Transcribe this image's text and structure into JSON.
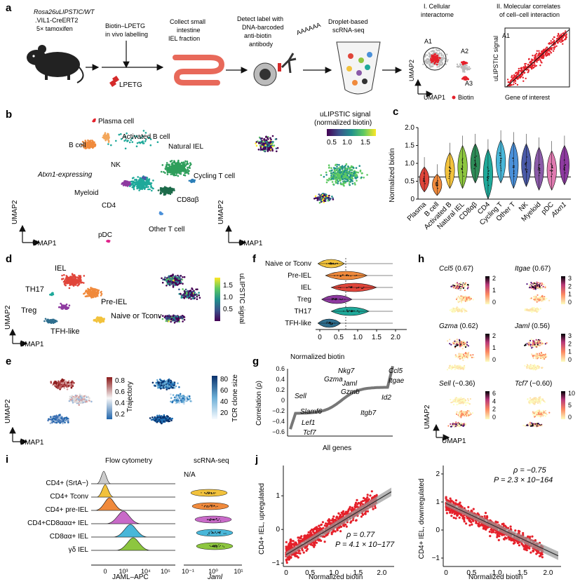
{
  "panels": {
    "a": "a",
    "b": "b",
    "c": "c",
    "d": "d",
    "e": "e",
    "f": "f",
    "g": "g",
    "h": "h",
    "i": "i",
    "j": "j"
  },
  "panel_a": {
    "mouse_line1": "Rosa26uLIPSTIC/WT",
    "mouse_line2": ".VIL1-CreERT2",
    "mouse_line3": "5× tamoxifen",
    "step1": [
      "Biotin–LPETG",
      "in vivo labelling"
    ],
    "lpetg": "LPETG",
    "step2": [
      "Collect small",
      "intestine",
      "IEL fraction"
    ],
    "step3": [
      "Detect label with",
      "DNA-barcoded",
      "anti-biotin",
      "antibody"
    ],
    "polyA": "AAAAAA",
    "step4": [
      "Droplet-based",
      "scRNA-seq"
    ],
    "section1": [
      "I. Cellular",
      "interactome"
    ],
    "section2": [
      "II. Molecular correlates",
      "of cell–cell interaction"
    ],
    "umap1": "UMAP1",
    "umap2": "UMAP2",
    "a1": "A1",
    "a2": "A2",
    "a3": "A3",
    "biotin": "Biotin",
    "ulipstic_signal": "uLIPSTIC signal",
    "gene_of_interest": "Gene of interest"
  },
  "panel_b": {
    "clusters": [
      "Plasma cell",
      "B cell",
      "Activated B cell",
      "Natural IEL",
      "NK",
      "Atxn1-expressing",
      "Cycling T cell",
      "Myeloid",
      "CD8αβ",
      "CD4",
      "Other T cell",
      "pDC"
    ],
    "legend_title": [
      "uLIPSTIC signal",
      "(normalized biotin)"
    ],
    "legend_ticks": [
      "0.5",
      "1.0",
      "1.5"
    ],
    "umap1": "UMAP1",
    "umap2": "UMAP2"
  },
  "panel_c": {
    "ylabel": "Normalized biotin",
    "yticks": [
      "0",
      "0.5",
      "1.0",
      "1.5",
      "2.0"
    ],
    "categories": [
      "Plasma",
      "B cell",
      "Activated B",
      "Natural IEL",
      "CD8αβ",
      "CD4",
      "Cycling T",
      "Other T",
      "NK",
      "Myeloid",
      "pDC",
      "Atxn1"
    ],
    "colors": [
      "#e0453a",
      "#f08a3c",
      "#f2c23c",
      "#8dc63f",
      "#2e8b57",
      "#1fa99a",
      "#49b7d9",
      "#4a90d9",
      "#4a5aa8",
      "#8a5aa8",
      "#e07ab0",
      "#8e3aa0"
    ]
  },
  "panel_d": {
    "clusters": [
      "IEL",
      "TH17",
      "Pre-IEL",
      "Treg",
      "Naive or Tconv",
      "TFH-like"
    ],
    "colorbar_label": "uLIPSTIC signal",
    "colorbar_ticks": [
      "0.5",
      "1.0",
      "1.5"
    ],
    "umap1": "UMAP1",
    "umap2": "UMAP2"
  },
  "panel_e": {
    "cb1_label": "Trajectory",
    "cb1_ticks": [
      "0.2",
      "0.4",
      "0.6",
      "0.8"
    ],
    "cb2_label": "TCR clone size",
    "cb2_ticks": [
      "20",
      "40",
      "60",
      "80"
    ],
    "umap1": "UMAP1",
    "umap2": "UMAP2"
  },
  "panel_f": {
    "categories": [
      "Naive or Tconv",
      "Pre-IEL",
      "IEL",
      "Treg",
      "TH17",
      "TFH-like"
    ],
    "colors": [
      "#f2c23c",
      "#f08a3c",
      "#e0453a",
      "#8e3aa0",
      "#1fa99a",
      "#2e6e8e"
    ],
    "xlabel": "Normalized biotin",
    "xticks": [
      "0",
      "0.5",
      "1.0",
      "1.5",
      "2.0"
    ]
  },
  "panel_g": {
    "ylabel": "Correlation (ρ)",
    "xlabel": "All genes",
    "yticks": [
      "−0.6",
      "−0.4",
      "−0.2",
      "0",
      "0.2",
      "0.4",
      "0.6"
    ],
    "top_genes": [
      "Nkg7",
      "Ccl5",
      "Gzma",
      "Itgae",
      "Jaml",
      "Gzmb",
      "Id2",
      "Itgb7"
    ],
    "bottom_genes": [
      "Sell",
      "Slamf6",
      "Lef1",
      "Tcf7"
    ]
  },
  "panel_h": {
    "genes": [
      {
        "name": "Ccl5",
        "rho": "(0.67)",
        "ticks": [
          "2",
          "1",
          "0"
        ]
      },
      {
        "name": "Itgae",
        "rho": "(0.67)",
        "ticks": [
          "3",
          "2",
          "1",
          "0"
        ]
      },
      {
        "name": "Gzma",
        "rho": "(0.62)",
        "ticks": [
          "2",
          "1",
          "0"
        ]
      },
      {
        "name": "Jaml",
        "rho": "(0.56)",
        "ticks": [
          "3",
          "2",
          "1",
          "0"
        ]
      },
      {
        "name": "Sell",
        "rho": "(−0.36)",
        "ticks": [
          "6",
          "4",
          "2",
          "0"
        ]
      },
      {
        "name": "Tcf7",
        "rho": "(−0.60)",
        "ticks": [
          "10",
          "5",
          "0"
        ]
      }
    ],
    "umap1": "UMAP1",
    "umap2": "UMAP2"
  },
  "panel_i": {
    "flow_title": "Flow cytometry",
    "sc_title": "scRNA-seq",
    "na": "N/A",
    "rows": [
      "CD4+ (SrtA−)",
      "CD4+ Tconv",
      "CD4+ pre-IEL",
      "CD4+CD8ααα+ IEL",
      "CD8αα+ IEL",
      "γδ IEL"
    ],
    "row_colors": [
      "#cccccc",
      "#f2c23c",
      "#f08a3c",
      "#c86ac8",
      "#49b7d9",
      "#8dc63f"
    ],
    "flow_xticks": [
      "0",
      "10³",
      "10⁴",
      "10⁵"
    ],
    "flow_xlabel": "JAML–APC",
    "sc_xticks": [
      "10⁻¹",
      "10⁰",
      "10¹"
    ],
    "sc_xlabel": "Jaml"
  },
  "panel_j": {
    "left": {
      "ylabel": "CD4+ IEL, upregulated",
      "xlabel": "Normalized biotin",
      "rho": "ρ = 0.77",
      "p": "P = 4.1 × 10−177",
      "xticks": [
        "0",
        "0.5",
        "1.0",
        "1.5",
        "2.0"
      ],
      "yticks": [
        "−1",
        "0",
        "1"
      ]
    },
    "right": {
      "ylabel": "CD4+ IEL, downregulated",
      "xlabel": "Normalized biotin",
      "rho": "ρ = −0.75",
      "p": "P = 2.3 × 10−164",
      "xticks": [
        "0",
        "0.5",
        "1.0",
        "1.5",
        "2.0"
      ],
      "yticks": [
        "−1",
        "0",
        "1",
        "2"
      ]
    }
  }
}
